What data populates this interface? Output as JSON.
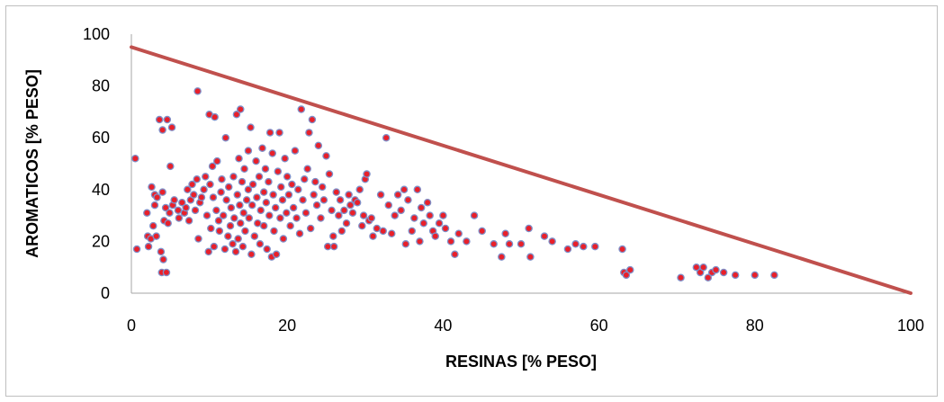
{
  "chart_data": {
    "type": "scatter",
    "title": "",
    "xlabel": "RESINAS [% PESO]",
    "ylabel": "AROMATICOS [% PESO]",
    "xlim": [
      0,
      100
    ],
    "ylim": [
      0,
      100
    ],
    "x_ticks": [
      "0",
      "20",
      "40",
      "60",
      "80",
      "100"
    ],
    "y_ticks": [
      "0",
      "20",
      "40",
      "60",
      "80",
      "100"
    ],
    "grid": false,
    "legend": "none",
    "colors": {
      "marker_fill": "#e8202a",
      "marker_edge": "#7f8fc8",
      "line": "#c0504d",
      "axis": "#a6a6a6"
    },
    "line": {
      "x": [
        0,
        100
      ],
      "y": [
        95,
        0
      ]
    },
    "points": [
      [
        0.5,
        52
      ],
      [
        0.7,
        17
      ],
      [
        2,
        31
      ],
      [
        2.1,
        22
      ],
      [
        2.2,
        18
      ],
      [
        2.5,
        21
      ],
      [
        2.6,
        41
      ],
      [
        2.8,
        26
      ],
      [
        3,
        34
      ],
      [
        3,
        38
      ],
      [
        3.2,
        22
      ],
      [
        3.3,
        37
      ],
      [
        3.6,
        67
      ],
      [
        3.8,
        16
      ],
      [
        3.9,
        8
      ],
      [
        4,
        63
      ],
      [
        4,
        39
      ],
      [
        4.1,
        13
      ],
      [
        4.2,
        28
      ],
      [
        4.4,
        33
      ],
      [
        4.5,
        8
      ],
      [
        4.6,
        67
      ],
      [
        4.7,
        27
      ],
      [
        4.9,
        31
      ],
      [
        5,
        49
      ],
      [
        5.2,
        64
      ],
      [
        5.3,
        34
      ],
      [
        5.5,
        36
      ],
      [
        6,
        32
      ],
      [
        6.1,
        29
      ],
      [
        6.5,
        35
      ],
      [
        6.8,
        31
      ],
      [
        7,
        33
      ],
      [
        7.2,
        40
      ],
      [
        7.4,
        28
      ],
      [
        7.6,
        36
      ],
      [
        7.8,
        42
      ],
      [
        8,
        38
      ],
      [
        8.2,
        32
      ],
      [
        8.4,
        44
      ],
      [
        8.5,
        78
      ],
      [
        8.6,
        21
      ],
      [
        8.8,
        35
      ],
      [
        9,
        37
      ],
      [
        9.3,
        40
      ],
      [
        9.5,
        45
      ],
      [
        9.7,
        30
      ],
      [
        9.9,
        16
      ],
      [
        10,
        69
      ],
      [
        10.1,
        42
      ],
      [
        10.2,
        25
      ],
      [
        10.4,
        49
      ],
      [
        10.5,
        37
      ],
      [
        10.6,
        18
      ],
      [
        10.7,
        68
      ],
      [
        10.9,
        32
      ],
      [
        11,
        51
      ],
      [
        11.2,
        28
      ],
      [
        11.3,
        24
      ],
      [
        11.5,
        39
      ],
      [
        11.6,
        44
      ],
      [
        11.8,
        30
      ],
      [
        12,
        17
      ],
      [
        12.1,
        60
      ],
      [
        12.2,
        36
      ],
      [
        12.4,
        22
      ],
      [
        12.5,
        41
      ],
      [
        12.7,
        26
      ],
      [
        12.8,
        33
      ],
      [
        13,
        19
      ],
      [
        13.1,
        45
      ],
      [
        13.2,
        29
      ],
      [
        13.4,
        16
      ],
      [
        13.5,
        69
      ],
      [
        13.6,
        38
      ],
      [
        13.7,
        21
      ],
      [
        13.8,
        52
      ],
      [
        13.9,
        34
      ],
      [
        14,
        71
      ],
      [
        14,
        27
      ],
      [
        14.2,
        43
      ],
      [
        14.3,
        18
      ],
      [
        14.4,
        31
      ],
      [
        14.5,
        48
      ],
      [
        14.6,
        24
      ],
      [
        14.8,
        36
      ],
      [
        15,
        55
      ],
      [
        15,
        40
      ],
      [
        15.1,
        29
      ],
      [
        15.3,
        64
      ],
      [
        15.4,
        15
      ],
      [
        15.5,
        34
      ],
      [
        15.6,
        42
      ],
      [
        15.8,
        22
      ],
      [
        16,
        51
      ],
      [
        16.1,
        37
      ],
      [
        16.2,
        27
      ],
      [
        16.4,
        45
      ],
      [
        16.5,
        19
      ],
      [
        16.6,
        32
      ],
      [
        16.8,
        56
      ],
      [
        17,
        39
      ],
      [
        17,
        26
      ],
      [
        17.2,
        48
      ],
      [
        17.3,
        35
      ],
      [
        17.4,
        17
      ],
      [
        17.6,
        43
      ],
      [
        17.7,
        30
      ],
      [
        17.8,
        62
      ],
      [
        18,
        14
      ],
      [
        18.1,
        54
      ],
      [
        18.2,
        38
      ],
      [
        18.3,
        24
      ],
      [
        18.5,
        33
      ],
      [
        18.6,
        15
      ],
      [
        18.8,
        47
      ],
      [
        19,
        62
      ],
      [
        19.1,
        29
      ],
      [
        19.2,
        41
      ],
      [
        19.4,
        36
      ],
      [
        19.5,
        21
      ],
      [
        19.7,
        52
      ],
      [
        19.9,
        31
      ],
      [
        20,
        45
      ],
      [
        20.2,
        38
      ],
      [
        20.4,
        26
      ],
      [
        20.6,
        42
      ],
      [
        20.8,
        33
      ],
      [
        21,
        55
      ],
      [
        21.2,
        29
      ],
      [
        21.4,
        40
      ],
      [
        21.6,
        23
      ],
      [
        21.8,
        71
      ],
      [
        22,
        36
      ],
      [
        22.2,
        44
      ],
      [
        22.4,
        31
      ],
      [
        22.6,
        48
      ],
      [
        22.8,
        62
      ],
      [
        23,
        25
      ],
      [
        23.2,
        67
      ],
      [
        23.4,
        38
      ],
      [
        23.6,
        43
      ],
      [
        23.8,
        34
      ],
      [
        24,
        57
      ],
      [
        24.3,
        29
      ],
      [
        24.5,
        41
      ],
      [
        24.7,
        36
      ],
      [
        25,
        53
      ],
      [
        25.2,
        18
      ],
      [
        25.4,
        46
      ],
      [
        25.7,
        32
      ],
      [
        25.9,
        22
      ],
      [
        26,
        18
      ],
      [
        26.3,
        39
      ],
      [
        26.6,
        30
      ],
      [
        26.8,
        36
      ],
      [
        27,
        24
      ],
      [
        27.3,
        32
      ],
      [
        27.6,
        27
      ],
      [
        27.9,
        38
      ],
      [
        28.1,
        34
      ],
      [
        28.4,
        31
      ],
      [
        28.7,
        36
      ],
      [
        29,
        35
      ],
      [
        29.3,
        40
      ],
      [
        29.6,
        26
      ],
      [
        29.8,
        30
      ],
      [
        30,
        44
      ],
      [
        30.2,
        46
      ],
      [
        30.5,
        28
      ],
      [
        30.8,
        29
      ],
      [
        31,
        22
      ],
      [
        31.5,
        25
      ],
      [
        32,
        38
      ],
      [
        32.3,
        24
      ],
      [
        32.7,
        60
      ],
      [
        33,
        34
      ],
      [
        33.4,
        23
      ],
      [
        33.8,
        30
      ],
      [
        34.2,
        38
      ],
      [
        34.6,
        32
      ],
      [
        35,
        40
      ],
      [
        35.2,
        19
      ],
      [
        35.5,
        36
      ],
      [
        36,
        24
      ],
      [
        36.3,
        29
      ],
      [
        36.7,
        40
      ],
      [
        37,
        20
      ],
      [
        37.2,
        33
      ],
      [
        37.5,
        27
      ],
      [
        38,
        35
      ],
      [
        38.3,
        30
      ],
      [
        38.7,
        24
      ],
      [
        39,
        22
      ],
      [
        39.5,
        27
      ],
      [
        40,
        30
      ],
      [
        40.3,
        25
      ],
      [
        41,
        20
      ],
      [
        41.5,
        15
      ],
      [
        42,
        23
      ],
      [
        43,
        20
      ],
      [
        44,
        30
      ],
      [
        45,
        24
      ],
      [
        46.5,
        19
      ],
      [
        47.5,
        14
      ],
      [
        48,
        23
      ],
      [
        48.5,
        19
      ],
      [
        50,
        19
      ],
      [
        51,
        25
      ],
      [
        51.2,
        14
      ],
      [
        53,
        22
      ],
      [
        54,
        20
      ],
      [
        56,
        17
      ],
      [
        57,
        19
      ],
      [
        58,
        18
      ],
      [
        59.5,
        18
      ],
      [
        63,
        17
      ],
      [
        63.2,
        8
      ],
      [
        63.5,
        7
      ],
      [
        64,
        9
      ],
      [
        70.5,
        6
      ],
      [
        72.5,
        10
      ],
      [
        73,
        8
      ],
      [
        73.4,
        10
      ],
      [
        74,
        6
      ],
      [
        74.5,
        8
      ],
      [
        75,
        9
      ],
      [
        76,
        8
      ],
      [
        77.5,
        7
      ],
      [
        80,
        7
      ],
      [
        82.5,
        7
      ]
    ]
  }
}
